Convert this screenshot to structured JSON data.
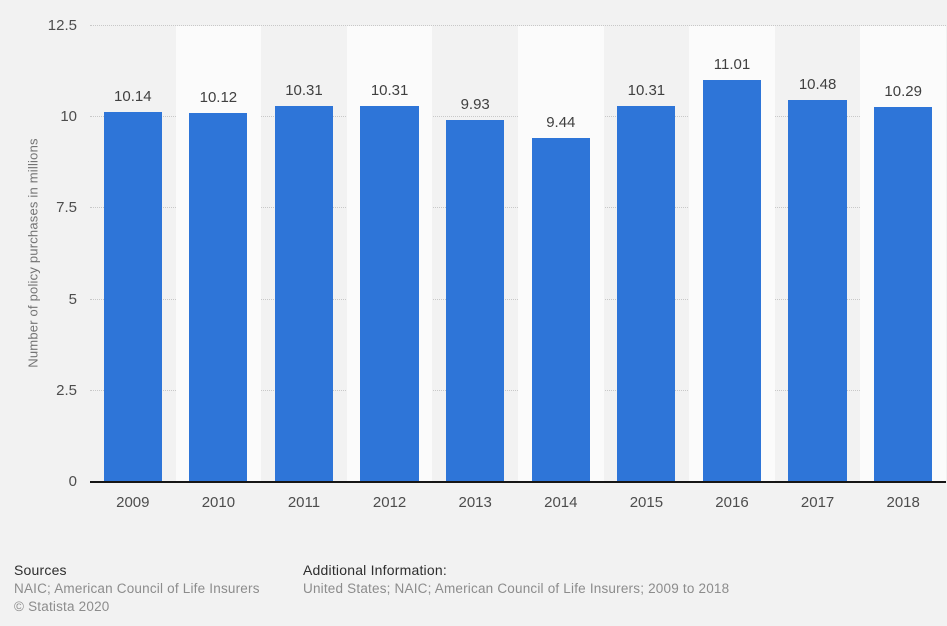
{
  "chart_data": {
    "type": "bar",
    "title": "",
    "categories": [
      "2009",
      "2010",
      "2011",
      "2012",
      "2013",
      "2014",
      "2015",
      "2016",
      "2017",
      "2018"
    ],
    "values": [
      10.14,
      10.12,
      10.31,
      10.31,
      9.93,
      9.44,
      10.31,
      11.01,
      10.48,
      10.29
    ],
    "xlabel": "",
    "ylabel": "Number of policy purchases in millions",
    "ylim": [
      0,
      12.5
    ],
    "yticks": [
      0,
      2.5,
      5,
      7.5,
      10,
      12.5
    ],
    "grid": "horizontal-dotted",
    "legend": "none",
    "value_labels_shown": true,
    "colors": {
      "bar": "#2e75d8",
      "page_background": "#f2f2f2",
      "alt_column_band": "#fbfbfb",
      "gridline": "#c8c8c8",
      "axis_line": "#161616",
      "tick_label": "#4d4d4d",
      "value_label": "#404040",
      "axis_title": "#737373"
    }
  },
  "footer": {
    "sources_heading": "Sources",
    "sources_line": "NAIC; American Council of Life Insurers",
    "copyright": "© Statista 2020",
    "additional_heading": "Additional Information:",
    "additional_line": "United States; NAIC; American Council of Life Insurers; 2009 to 2018"
  }
}
